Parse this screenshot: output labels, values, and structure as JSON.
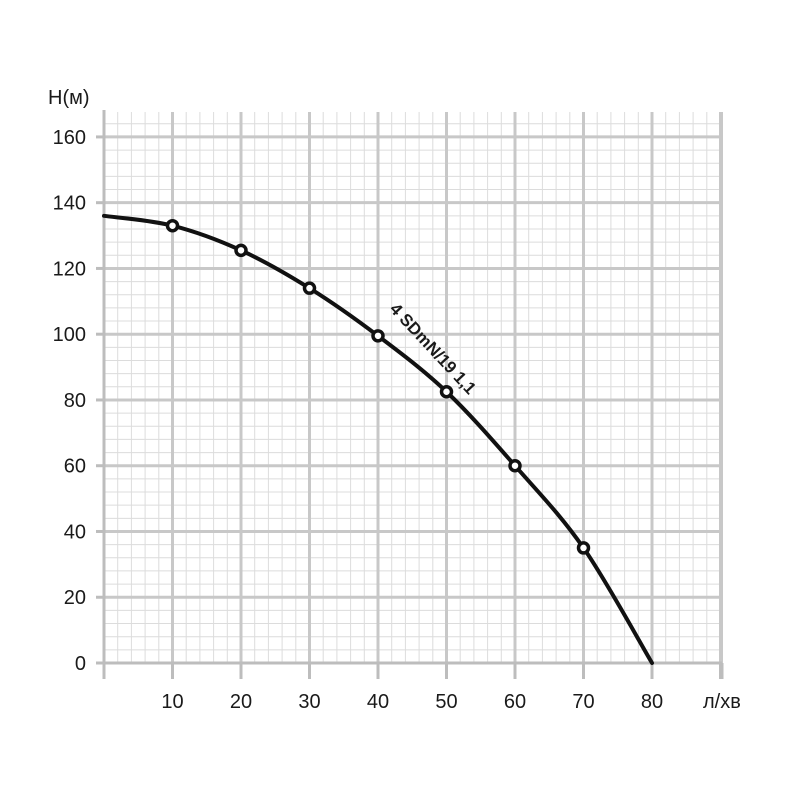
{
  "chart_data": {
    "type": "line",
    "title": "",
    "xlabel": "л/хв",
    "ylabel": "Н(м)",
    "xlim": [
      0,
      90
    ],
    "ylim": [
      0,
      160
    ],
    "x_ticks": [
      10,
      20,
      30,
      40,
      50,
      60,
      70,
      80
    ],
    "y_ticks": [
      0,
      20,
      40,
      60,
      80,
      100,
      120,
      140,
      160
    ],
    "grid": true,
    "series": [
      {
        "name": "4 SDmN/19 1,1",
        "curve": [
          {
            "x": 0,
            "y": 136
          },
          {
            "x": 10,
            "y": 133
          },
          {
            "x": 20,
            "y": 125.5
          },
          {
            "x": 30,
            "y": 114
          },
          {
            "x": 40,
            "y": 99.5
          },
          {
            "x": 50,
            "y": 82.5
          },
          {
            "x": 60,
            "y": 60
          },
          {
            "x": 70,
            "y": 35
          },
          {
            "x": 80,
            "y": 0
          }
        ],
        "markers": [
          {
            "x": 10,
            "y": 133
          },
          {
            "x": 20,
            "y": 125.5
          },
          {
            "x": 30,
            "y": 114
          },
          {
            "x": 40,
            "y": 99.5
          },
          {
            "x": 50,
            "y": 82.5
          },
          {
            "x": 60,
            "y": 60
          },
          {
            "x": 70,
            "y": 35
          }
        ]
      }
    ],
    "colors": {
      "curve": "#111111",
      "major_grid": "#c8c8c8",
      "minor_grid": "#dcdcdc",
      "axis": "#bdbdbd"
    }
  }
}
